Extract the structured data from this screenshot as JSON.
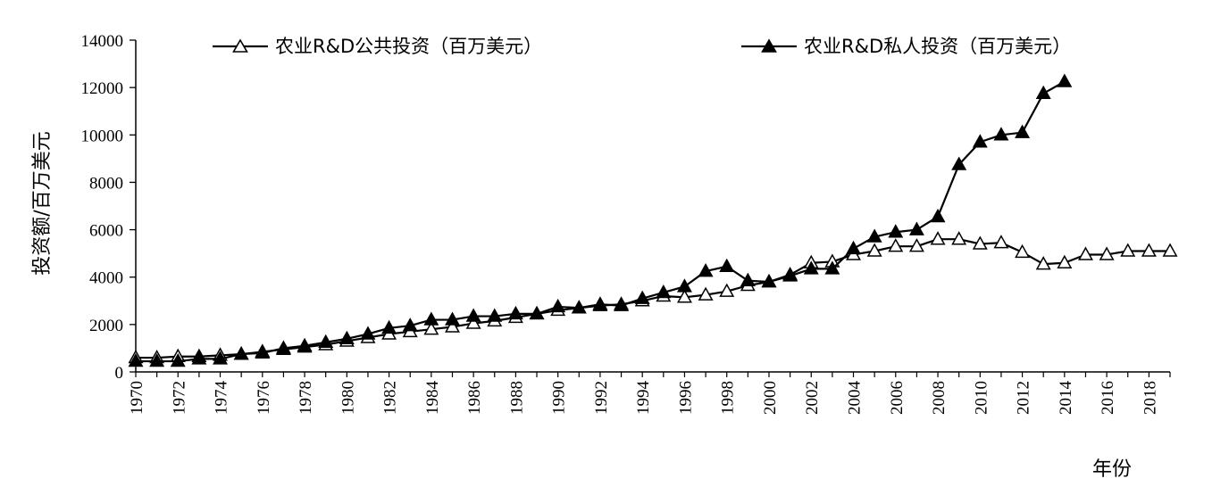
{
  "chart_data": {
    "type": "line",
    "xlabel": "年份",
    "ylabel": "投资额/百万美元",
    "ylim": [
      0,
      14000
    ],
    "yticks": [
      0,
      2000,
      4000,
      6000,
      8000,
      10000,
      12000,
      14000
    ],
    "xlim": [
      1970,
      2019
    ],
    "xticks": [
      1970,
      1972,
      1974,
      1976,
      1978,
      1980,
      1982,
      1984,
      1986,
      1988,
      1990,
      1992,
      1994,
      1996,
      1998,
      2000,
      2002,
      2004,
      2006,
      2008,
      2010,
      2012,
      2014,
      2016,
      2018
    ],
    "grid": false,
    "legend_position": "top",
    "series": [
      {
        "name": "农业R&D公共投资（百万美元）",
        "marker": "open-triangle",
        "color": "#000000",
        "x": [
          1970,
          1971,
          1972,
          1973,
          1974,
          1975,
          1976,
          1977,
          1978,
          1979,
          1980,
          1981,
          1982,
          1983,
          1984,
          1985,
          1986,
          1987,
          1988,
          1989,
          1990,
          1991,
          1992,
          1993,
          1994,
          1995,
          1996,
          1997,
          1998,
          1999,
          2000,
          2001,
          2002,
          2003,
          2004,
          2005,
          2006,
          2007,
          2008,
          2009,
          2010,
          2011,
          2012,
          2013,
          2014,
          2015,
          2016,
          2017,
          2018,
          2019
        ],
        "y": [
          600,
          600,
          650,
          650,
          700,
          750,
          850,
          950,
          1050,
          1150,
          1300,
          1450,
          1600,
          1700,
          1800,
          1900,
          2050,
          2150,
          2300,
          2450,
          2600,
          2700,
          2800,
          2850,
          3000,
          3200,
          3150,
          3250,
          3400,
          3650,
          3800,
          4100,
          4600,
          4650,
          4950,
          5100,
          5300,
          5300,
          5600,
          5600,
          5400,
          5450,
          5050,
          4550,
          4600,
          4950,
          4950,
          5100,
          5100,
          5100
        ]
      },
      {
        "name": "农业R&D私人投资（百万美元）",
        "marker": "filled-triangle",
        "color": "#000000",
        "x": [
          1970,
          1971,
          1972,
          1973,
          1974,
          1975,
          1976,
          1977,
          1978,
          1979,
          1980,
          1981,
          1982,
          1983,
          1984,
          1985,
          1986,
          1987,
          1988,
          1989,
          1990,
          1991,
          1992,
          1993,
          1994,
          1995,
          1996,
          1997,
          1998,
          1999,
          2000,
          2001,
          2002,
          2003,
          2004,
          2005,
          2006,
          2007,
          2008,
          2009,
          2010,
          2011,
          2012,
          2013,
          2014
        ],
        "y": [
          450,
          450,
          450,
          550,
          550,
          750,
          800,
          1000,
          1100,
          1250,
          1400,
          1600,
          1850,
          1950,
          2200,
          2200,
          2350,
          2350,
          2450,
          2450,
          2750,
          2700,
          2850,
          2800,
          3100,
          3350,
          3600,
          4250,
          4450,
          3850,
          3800,
          4050,
          4350,
          4350,
          5200,
          5700,
          5900,
          6000,
          6550,
          8750,
          9700,
          10000,
          10100,
          11750,
          12250
        ]
      }
    ]
  }
}
